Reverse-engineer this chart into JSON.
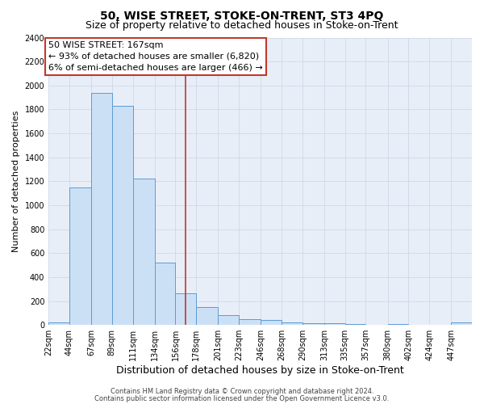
{
  "title": "50, WISE STREET, STOKE-ON-TRENT, ST3 4PQ",
  "subtitle": "Size of property relative to detached houses in Stoke-on-Trent",
  "xlabel": "Distribution of detached houses by size in Stoke-on-Trent",
  "ylabel": "Number of detached properties",
  "footer1": "Contains HM Land Registry data © Crown copyright and database right 2024.",
  "footer2": "Contains public sector information licensed under the Open Government Licence v3.0.",
  "annotation_line1": "50 WISE STREET: 167sqm",
  "annotation_line2": "← 93% of detached houses are smaller (6,820)",
  "annotation_line3": "6% of semi-detached houses are larger (466) →",
  "property_size": 167,
  "bar_edges": [
    22,
    44,
    67,
    89,
    111,
    134,
    156,
    178,
    201,
    223,
    246,
    268,
    290,
    313,
    335,
    357,
    380,
    402,
    424,
    447,
    469
  ],
  "bar_values": [
    25,
    1150,
    1940,
    1830,
    1220,
    520,
    265,
    150,
    80,
    52,
    42,
    20,
    14,
    14,
    5,
    2,
    5,
    2,
    0,
    20
  ],
  "bar_facecolor": "#cce0f5",
  "bar_edgecolor": "#5b9bd5",
  "vline_color": "#c0392b",
  "ylim": [
    0,
    2400
  ],
  "yticks": [
    0,
    200,
    400,
    600,
    800,
    1000,
    1200,
    1400,
    1600,
    1800,
    2000,
    2200,
    2400
  ],
  "grid_color": "#d0d8e8",
  "bg_color": "#e8eef8",
  "title_fontsize": 10,
  "subtitle_fontsize": 9,
  "xlabel_fontsize": 9,
  "ylabel_fontsize": 8,
  "tick_fontsize": 7,
  "annotation_fontsize": 8,
  "footer_fontsize": 6
}
